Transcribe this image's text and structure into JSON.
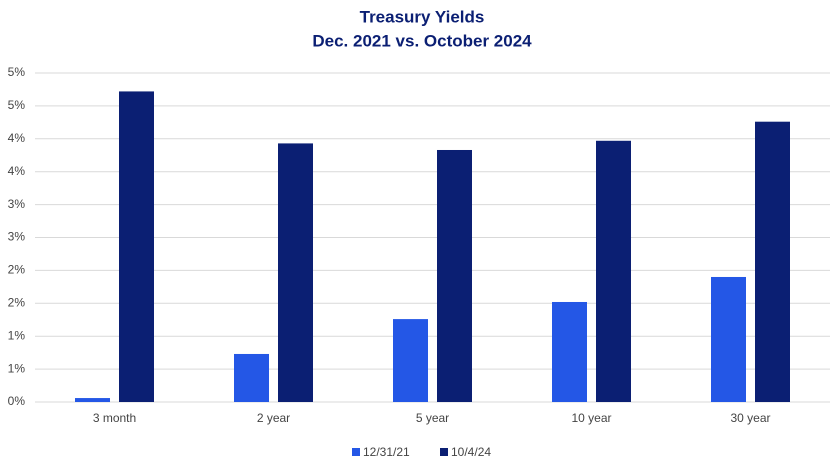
{
  "chart_data": {
    "type": "bar",
    "title": "Treasury Yields",
    "subtitle": "Dec. 2021 vs. October 2024",
    "categories": [
      "3 month",
      "2 year",
      "5 year",
      "10 year",
      "30 year"
    ],
    "series": [
      {
        "name": "12/31/21",
        "color": "#2457e6",
        "values": [
          0.06,
          0.73,
          1.26,
          1.52,
          1.9
        ]
      },
      {
        "name": "10/4/24",
        "color": "#0b1f73",
        "values": [
          4.72,
          3.93,
          3.83,
          3.97,
          4.26
        ]
      }
    ],
    "ylim": [
      0,
      5
    ],
    "yticks": [
      {
        "value": 0,
        "label": "0%"
      },
      {
        "value": 0.5,
        "label": "1%"
      },
      {
        "value": 1,
        "label": "1%"
      },
      {
        "value": 1.5,
        "label": "2%"
      },
      {
        "value": 2,
        "label": "2%"
      },
      {
        "value": 2.5,
        "label": "3%"
      },
      {
        "value": 3,
        "label": "3%"
      },
      {
        "value": 3.5,
        "label": "4%"
      },
      {
        "value": 4,
        "label": "4%"
      },
      {
        "value": 4.5,
        "label": "5%"
      },
      {
        "value": 5,
        "label": "5%"
      }
    ],
    "grid": true
  }
}
